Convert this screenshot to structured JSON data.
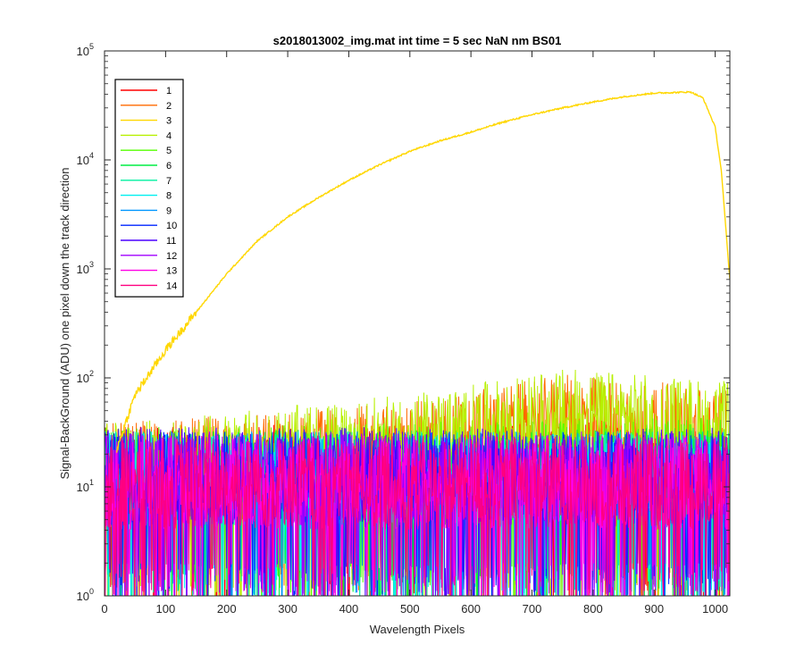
{
  "chart_data": {
    "type": "line",
    "title": "s2018013002_img.mat int time = 5 sec  NaN nm BS01",
    "xlabel": "Wavelength Pixels",
    "ylabel": "Signal-BackGround (ADU) one pixel down the track direction",
    "xlim": [
      0,
      1024
    ],
    "ylim": [
      1,
      100000
    ],
    "yscale": "log",
    "x_ticks": [
      0,
      100,
      200,
      300,
      400,
      500,
      600,
      700,
      800,
      900,
      1000
    ],
    "y_ticks": [
      {
        "value": 1,
        "base": "10",
        "exp": "0"
      },
      {
        "value": 10,
        "base": "10",
        "exp": "1"
      },
      {
        "value": 100,
        "base": "10",
        "exp": "2"
      },
      {
        "value": 1000,
        "base": "10",
        "exp": "3"
      },
      {
        "value": 10000,
        "base": "10",
        "exp": "4"
      },
      {
        "value": 100000,
        "base": "10",
        "exp": "5"
      }
    ],
    "grid": false,
    "legend_position": "top-left",
    "series": [
      {
        "name": "1",
        "color": "#ff0000",
        "kind": "noise",
        "level": 15,
        "trend": [
          [
            0,
            13
          ],
          [
            400,
            14
          ],
          [
            1024,
            15
          ]
        ]
      },
      {
        "name": "2",
        "color": "#ff6a00",
        "kind": "noise",
        "level": 20,
        "trend": [
          [
            0,
            14
          ],
          [
            500,
            22
          ],
          [
            750,
            40
          ],
          [
            1024,
            30
          ]
        ]
      },
      {
        "name": "3",
        "color": "#ffd700",
        "kind": "signal",
        "trend": [
          [
            20,
            22
          ],
          [
            50,
            70
          ],
          [
            100,
            180
          ],
          [
            150,
            400
          ],
          [
            200,
            900
          ],
          [
            250,
            1800
          ],
          [
            300,
            3000
          ],
          [
            350,
            4500
          ],
          [
            400,
            6500
          ],
          [
            450,
            9000
          ],
          [
            500,
            12000
          ],
          [
            550,
            15000
          ],
          [
            600,
            18000
          ],
          [
            650,
            22000
          ],
          [
            700,
            26000
          ],
          [
            750,
            30000
          ],
          [
            800,
            34000
          ],
          [
            850,
            38000
          ],
          [
            900,
            41000
          ],
          [
            930,
            41500
          ],
          [
            960,
            42000
          ],
          [
            980,
            37000
          ],
          [
            1000,
            20000
          ],
          [
            1010,
            8000
          ],
          [
            1024,
            800
          ]
        ]
      },
      {
        "name": "4",
        "color": "#b7f000",
        "kind": "noise",
        "level": 22,
        "trend": [
          [
            0,
            14
          ],
          [
            500,
            26
          ],
          [
            750,
            45
          ],
          [
            1024,
            35
          ]
        ]
      },
      {
        "name": "5",
        "color": "#55ff00",
        "kind": "noise",
        "level": 14,
        "trend": [
          [
            0,
            13
          ],
          [
            1024,
            16
          ]
        ]
      },
      {
        "name": "6",
        "color": "#00ee44",
        "kind": "noise",
        "level": 12,
        "trend": [
          [
            0,
            12
          ],
          [
            1024,
            13
          ]
        ]
      },
      {
        "name": "7",
        "color": "#00f0a0",
        "kind": "noise",
        "level": 12,
        "trend": [
          [
            0,
            12
          ],
          [
            1024,
            12
          ]
        ]
      },
      {
        "name": "8",
        "color": "#00f0f0",
        "kind": "noise",
        "level": 12,
        "trend": [
          [
            0,
            12
          ],
          [
            1024,
            12
          ]
        ]
      },
      {
        "name": "9",
        "color": "#0096ff",
        "kind": "noise",
        "level": 12,
        "trend": [
          [
            0,
            12
          ],
          [
            1024,
            12
          ]
        ]
      },
      {
        "name": "10",
        "color": "#0026ff",
        "kind": "noise",
        "level": 12,
        "trend": [
          [
            0,
            12
          ],
          [
            1024,
            12
          ]
        ]
      },
      {
        "name": "11",
        "color": "#4c00ff",
        "kind": "noise",
        "level": 13,
        "trend": [
          [
            0,
            13
          ],
          [
            1024,
            13
          ]
        ]
      },
      {
        "name": "12",
        "color": "#a000ff",
        "kind": "noise",
        "level": 12,
        "trend": [
          [
            0,
            12
          ],
          [
            1024,
            12
          ]
        ]
      },
      {
        "name": "13",
        "color": "#ff00e6",
        "kind": "noise",
        "level": 11,
        "trend": [
          [
            0,
            11
          ],
          [
            1024,
            11
          ]
        ]
      },
      {
        "name": "14",
        "color": "#ff0080",
        "kind": "noise",
        "level": 11,
        "trend": [
          [
            0,
            11
          ],
          [
            1024,
            11
          ]
        ]
      }
    ]
  }
}
